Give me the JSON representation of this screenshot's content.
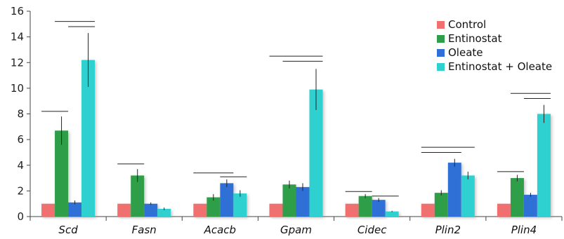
{
  "chart_data": {
    "type": "bar",
    "title": "",
    "xlabel": "",
    "ylabel": "",
    "ylim": [
      0,
      16
    ],
    "yticks": [
      0,
      2,
      4,
      6,
      8,
      10,
      12,
      14,
      16
    ],
    "grid": false,
    "legend_position": "top-right",
    "categories": [
      "Scd",
      "Fasn",
      "Acacb",
      "Gpam",
      "Cidec",
      "Plin2",
      "Plin4"
    ],
    "series": [
      {
        "name": "Control",
        "color": "#f07070",
        "values": [
          1,
          1,
          1,
          1,
          1,
          1,
          1
        ],
        "errors": [
          0,
          0,
          0,
          0,
          0,
          0,
          0
        ]
      },
      {
        "name": "Entinostat",
        "color": "#2e9e4a",
        "values": [
          6.7,
          3.2,
          1.5,
          2.5,
          1.6,
          1.85,
          3.0
        ],
        "errors": [
          1.1,
          0.5,
          0.25,
          0.3,
          0.15,
          0.2,
          0.25
        ]
      },
      {
        "name": "Oleate",
        "color": "#2f6fd6",
        "values": [
          1.1,
          1.0,
          2.6,
          2.3,
          1.3,
          4.2,
          1.7
        ],
        "errors": [
          0.15,
          0.1,
          0.3,
          0.3,
          0.15,
          0.3,
          0.15
        ]
      },
      {
        "name": "Entinostat + Oleate",
        "color": "#2ed0d0",
        "values": [
          12.2,
          0.6,
          1.8,
          9.9,
          0.4,
          3.2,
          8.0
        ],
        "errors": [
          2.1,
          0.1,
          0.25,
          1.6,
          0.05,
          0.3,
          0.7
        ]
      }
    ],
    "significance": [
      {
        "category": 0,
        "from_series": 0,
        "to_series": 1,
        "y": 8.2
      },
      {
        "category": 0,
        "from_series": 1,
        "to_series": 3,
        "y": 15.2
      },
      {
        "category": 0,
        "from_series": 2,
        "to_series": 3,
        "y": 14.8
      },
      {
        "category": 1,
        "from_series": 0,
        "to_series": 1,
        "y": 4.1
      },
      {
        "category": 2,
        "from_series": 0,
        "to_series": 2,
        "y": 3.4
      },
      {
        "category": 2,
        "from_series": 2,
        "to_series": 3,
        "y": 3.1
      },
      {
        "category": 3,
        "from_series": 0,
        "to_series": 3,
        "y": 12.5
      },
      {
        "category": 3,
        "from_series": 1,
        "to_series": 3,
        "y": 12.1
      },
      {
        "category": 4,
        "from_series": 0,
        "to_series": 1,
        "y": 1.95
      },
      {
        "category": 4,
        "from_series": 2,
        "to_series": 3,
        "y": 1.6
      },
      {
        "category": 5,
        "from_series": 0,
        "to_series": 3,
        "y": 5.4
      },
      {
        "category": 5,
        "from_series": 0,
        "to_series": 2,
        "y": 5.0
      },
      {
        "category": 6,
        "from_series": 0,
        "to_series": 1,
        "y": 3.5
      },
      {
        "category": 6,
        "from_series": 1,
        "to_series": 3,
        "y": 9.6
      },
      {
        "category": 6,
        "from_series": 2,
        "to_series": 3,
        "y": 9.2
      }
    ]
  }
}
